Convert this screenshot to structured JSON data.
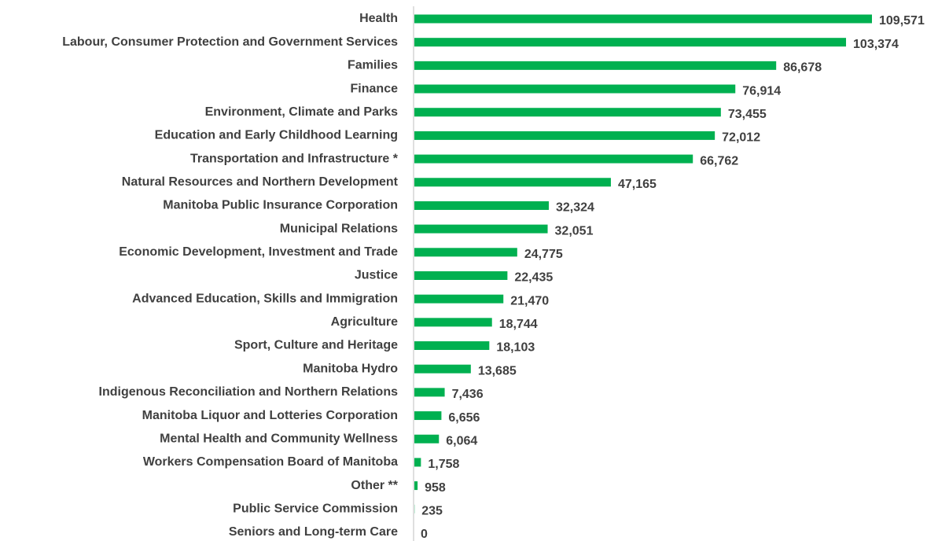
{
  "chart_data": {
    "type": "barh",
    "color": "#00b050",
    "categories": [
      "Health",
      "Labour, Consumer Protection and Government Services",
      "Families",
      "Finance",
      "Environment, Climate and Parks",
      "Education and Early Childhood Learning",
      "Transportation and Infrastructure *",
      "Natural Resources and Northern Development",
      "Manitoba Public Insurance Corporation",
      "Municipal Relations",
      "Economic Development, Investment and Trade",
      "Justice",
      "Advanced Education, Skills and Immigration",
      "Agriculture",
      "Sport, Culture and Heritage",
      "Manitoba Hydro",
      "Indigenous Reconciliation and Northern Relations",
      "Manitoba Liquor and Lotteries Corporation",
      "Mental Health and Community Wellness",
      "Workers Compensation Board of Manitoba",
      "Other **",
      "Public Service Commission",
      "Seniors and Long-term Care"
    ],
    "values": [
      109571,
      103374,
      86678,
      76914,
      73455,
      72012,
      66762,
      47165,
      32324,
      32051,
      24775,
      22435,
      21470,
      18744,
      18103,
      13685,
      7436,
      6656,
      6064,
      1758,
      958,
      235,
      0
    ],
    "value_labels": [
      "109,571",
      "103,374",
      "86,678",
      "76,914",
      "73,455",
      "72,012",
      "66,762",
      "47,165",
      "32,324",
      "32,051",
      "24,775",
      "22,435",
      "21,470",
      "18,744",
      "18,103",
      "13,685",
      "7,436",
      "6,656",
      "6,064",
      "1,758",
      "958",
      "235",
      "0"
    ]
  }
}
